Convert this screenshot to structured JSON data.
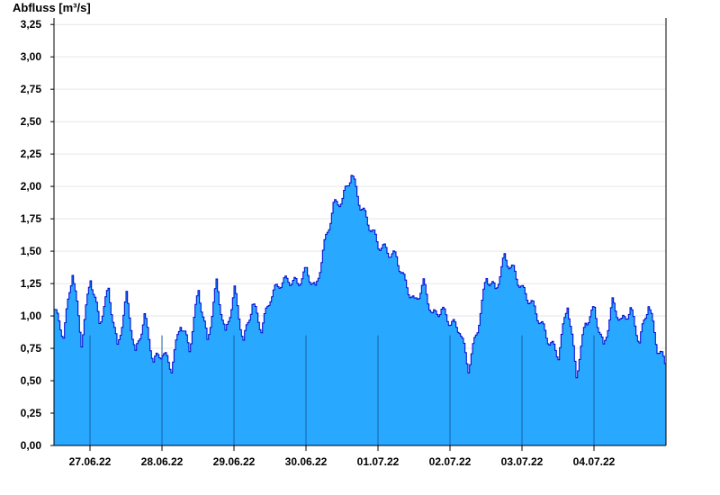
{
  "chart_data": {
    "type": "area",
    "ylabel": "Abfluss [m³/s]",
    "ylim": [
      0,
      3.3
    ],
    "yticks": [
      "0,00",
      "0,25",
      "0,50",
      "0,75",
      "1,00",
      "1,25",
      "1,50",
      "1,75",
      "2,00",
      "2,25",
      "2,50",
      "2,75",
      "3,00",
      "3,25"
    ],
    "ytick_values": [
      0,
      0.25,
      0.5,
      0.75,
      1.0,
      1.25,
      1.5,
      1.75,
      2.0,
      2.25,
      2.5,
      2.75,
      3.0,
      3.25
    ],
    "x_start": "26.06.22 12:00",
    "x_end": "04.07.22 24:00",
    "xticks": [
      "27.06.22",
      "28.06.22",
      "29.06.22",
      "30.06.22",
      "01.07.22",
      "02.07.22",
      "03.07.22",
      "04.07.22"
    ],
    "grid": "horizontal",
    "colors": {
      "fill": "#29a8ff",
      "line": "#0000cc",
      "grid": "#e6e6e6",
      "axis": "#000000"
    },
    "series": [
      {
        "x_unit": "hours since 26.06.22 12:00",
        "x": [
          0,
          3,
          6,
          9,
          12,
          15,
          18,
          21,
          24,
          27,
          30,
          33,
          36,
          39,
          42,
          45,
          48,
          51,
          54,
          57,
          60,
          63,
          66,
          69,
          72,
          75,
          78,
          81,
          84,
          87,
          90,
          93,
          96,
          99,
          102,
          105,
          108,
          111,
          114,
          117,
          120,
          123,
          126,
          129,
          132,
          135,
          138,
          141,
          144,
          147,
          150,
          153,
          156,
          159,
          162,
          165,
          168,
          171,
          174,
          177,
          180,
          183,
          186,
          189,
          192,
          195,
          198,
          201,
          204
        ],
        "values": [
          1.05,
          0.85,
          1.35,
          0.8,
          1.3,
          0.95,
          1.2,
          0.75,
          1.15,
          0.7,
          1.0,
          0.65,
          0.72,
          0.6,
          0.95,
          0.75,
          1.2,
          0.8,
          1.25,
          0.85,
          1.2,
          0.8,
          1.1,
          0.9,
          1.15,
          1.25,
          1.28,
          1.25,
          1.35,
          1.2,
          1.55,
          1.85,
          1.9,
          2.1,
          1.85,
          1.7,
          1.55,
          1.5,
          1.45,
          1.25,
          1.1,
          1.25,
          1.0,
          1.05,
          0.95,
          0.9,
          0.6,
          0.9,
          1.3,
          1.2,
          1.45,
          1.35,
          1.2,
          1.1,
          0.95,
          0.8,
          0.7,
          1.1,
          0.55,
          0.95,
          1.05,
          0.75,
          1.1,
          0.95,
          1.05,
          0.8,
          1.1,
          0.75,
          0.62
        ]
      }
    ]
  }
}
